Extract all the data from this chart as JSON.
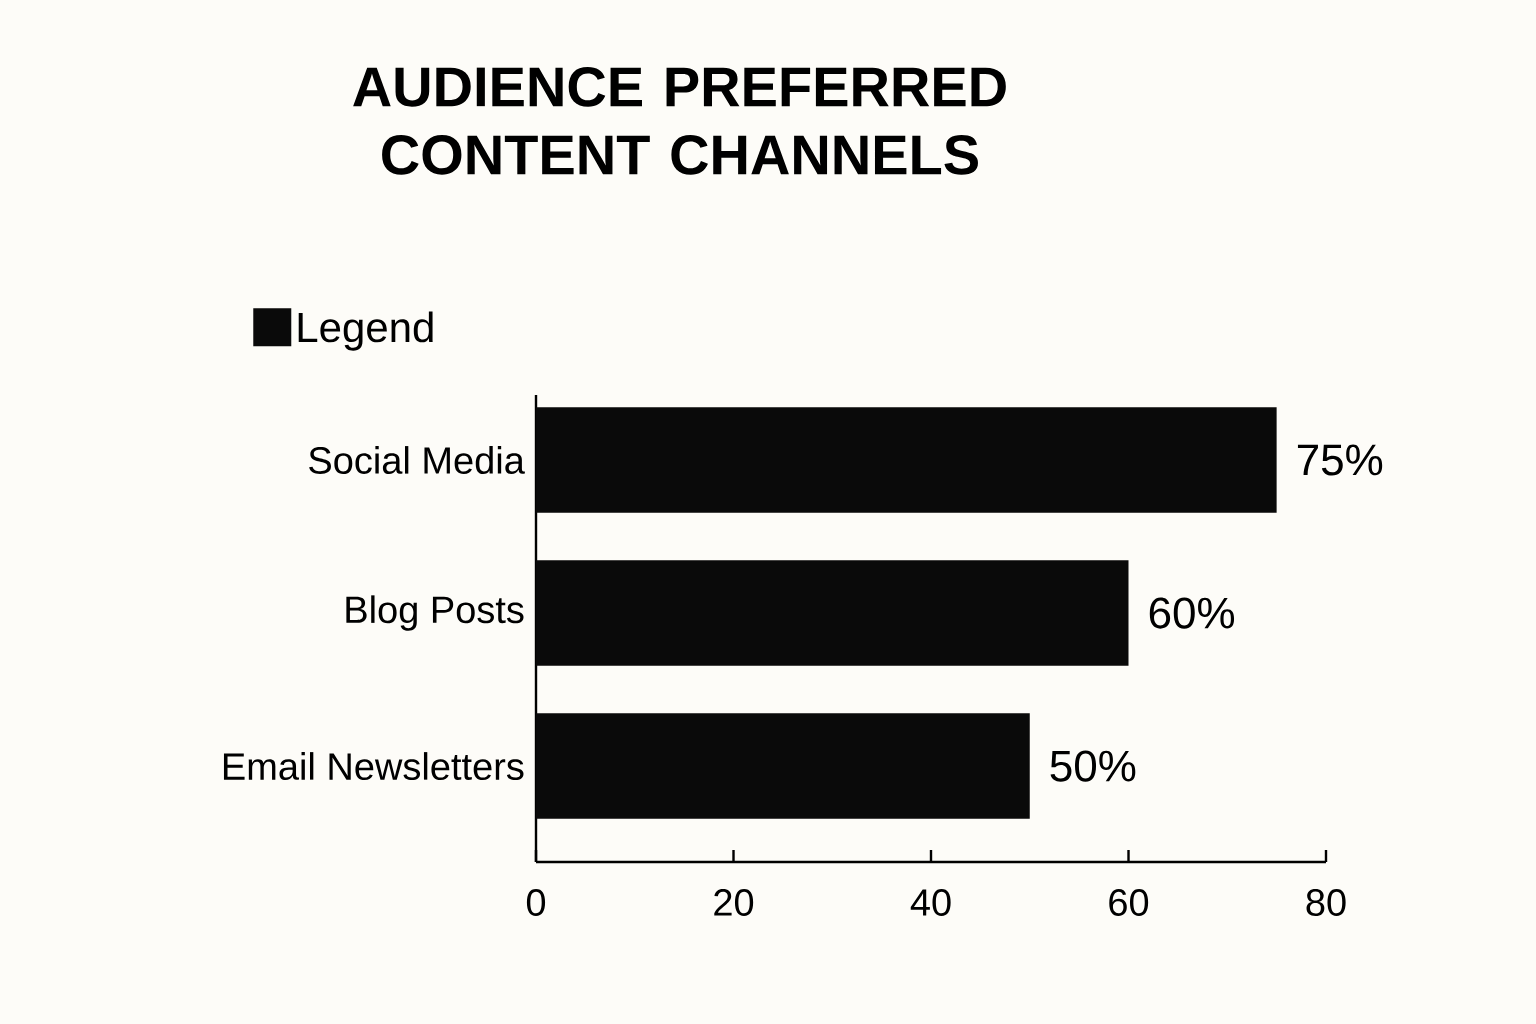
{
  "chart_data": {
    "type": "bar",
    "orientation": "horizontal",
    "title": "AUDIENCE PREFERRED CONTENT CHANNELS",
    "categories": [
      "Social Media",
      "Blog Posts",
      "Email Newsletters"
    ],
    "series": [
      {
        "name": "Legend",
        "color": "#0a0a0a",
        "values": [
          75,
          60,
          50
        ]
      }
    ],
    "value_labels": [
      "75%",
      "60%",
      "50%"
    ],
    "xlim": [
      0,
      80
    ],
    "xticks": [
      0,
      20,
      40,
      60,
      80
    ],
    "grid": false,
    "legend": "top left"
  }
}
